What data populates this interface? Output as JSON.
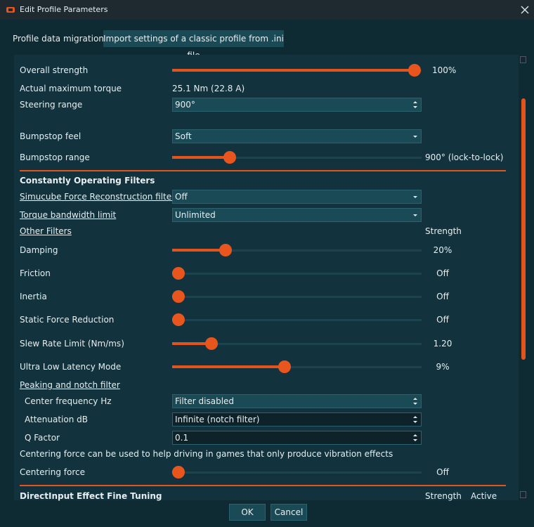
{
  "window": {
    "title": "Edit Profile Parameters"
  },
  "migration": {
    "label": "Profile data migration:",
    "button": "Import settings of a classic profile from .ini file"
  },
  "general": [
    {
      "label": "Overall strength",
      "value": "100%"
    },
    {
      "label": "Actual maximum torque",
      "value": "25.1 Nm (22.8 A)"
    },
    {
      "label": "Steering range",
      "value": "900°"
    },
    {
      "label": "Bumpstop feel",
      "value": "Soft"
    },
    {
      "label": "Bumpstop range",
      "value": "900° (lock-to-lock)"
    }
  ],
  "filters": {
    "heading": "Constantly Operating Filters",
    "reconstruction": {
      "label": "Simucube Force Reconstruction filter™",
      "value": "Off"
    },
    "bandwidth": {
      "label": "Torque bandwidth limit",
      "value": "Unlimited"
    },
    "other_filters": "Other Filters",
    "strength_header": "Strength",
    "sliders": [
      {
        "label": "Damping",
        "value": "20%"
      },
      {
        "label": "Friction",
        "value": "Off"
      },
      {
        "label": "Inertia",
        "value": "Off"
      },
      {
        "label": "Static Force Reduction",
        "value": "Off"
      },
      {
        "label": "Slew Rate Limit (Nm/ms)",
        "value": "1.20"
      },
      {
        "label": "Ultra Low Latency Mode",
        "value": "9%"
      }
    ]
  },
  "notch": {
    "heading": "Peaking and notch filter",
    "fields": [
      {
        "label": "Center frequency Hz",
        "value": "Filter disabled"
      },
      {
        "label": "Attenuation dB",
        "value": "Infinite (notch filter)"
      },
      {
        "label": "Q Factor",
        "value": "0.1"
      }
    ]
  },
  "centering": {
    "note": "Centering force can be used to help driving in games that only produce vibration effects",
    "label": "Centering force",
    "value": "Off"
  },
  "directinput": {
    "heading": "DirectInput Effect Fine Tuning",
    "strength_header": "Strength",
    "active_header": "Active"
  },
  "buttons": {
    "ok": "OK",
    "cancel": "Cancel"
  }
}
